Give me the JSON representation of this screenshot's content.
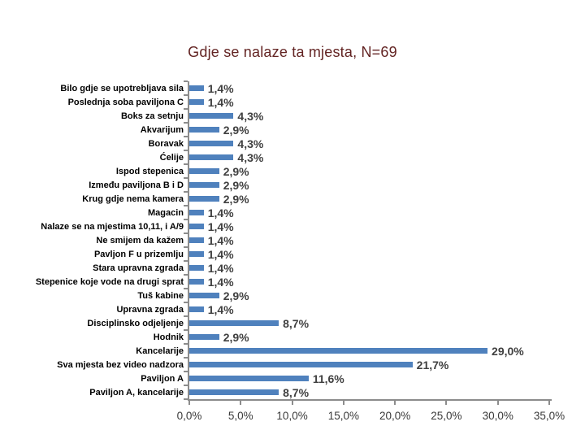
{
  "chart_data": {
    "type": "bar",
    "orientation": "horizontal",
    "title": "Gdje se nalaze ta mjesta, N=69",
    "title_color": "#632423",
    "categories": [
      "Bilo gdje se upotrebljava sila",
      "Poslednja soba paviljona C",
      "Boks za setnju",
      "Akvarijum",
      "Boravak",
      "Ćelije",
      "Ispod stepenica",
      "Između paviljona B i D",
      "Krug gdje nema kamera",
      "Magacin",
      "Nalaze se na mjestima 10,11, i A/9",
      "Ne smijem da kažem",
      "Pavljon F u prizemlju",
      "Stara upravna zgrada",
      "Stepenice koje vode na drugi sprat",
      "Tuš kabine",
      "Upravna zgrada",
      "Disciplinsko odjeljenje",
      "Hodnik",
      "Kancelarije",
      "Sva mjesta bez video nadzora",
      "Paviljon A",
      "Paviljon A, kancelarije"
    ],
    "values": [
      1.4,
      1.4,
      4.3,
      2.9,
      4.3,
      4.3,
      2.9,
      2.9,
      2.9,
      1.4,
      1.4,
      1.4,
      1.4,
      1.4,
      1.4,
      2.9,
      1.4,
      8.7,
      2.9,
      29.0,
      21.7,
      11.6,
      8.7
    ],
    "value_labels": [
      "1,4%",
      "1,4%",
      "4,3%",
      "2,9%",
      "4,3%",
      "4,3%",
      "2,9%",
      "2,9%",
      "2,9%",
      "1,4%",
      "1,4%",
      "1,4%",
      "1,4%",
      "1,4%",
      "1,4%",
      "2,9%",
      "1,4%",
      "8,7%",
      "2,9%",
      "29,0%",
      "21,7%",
      "11,6%",
      "8,7%"
    ],
    "x_ticks": [
      "0,0%",
      "5,0%",
      "10,0%",
      "15,0%",
      "20,0%",
      "25,0%",
      "30,0%",
      "35,0%"
    ],
    "xlim": [
      0,
      35
    ],
    "bar_color": "#4F81BD",
    "axis_color": "#8c8c8c",
    "value_label_color": "#404040",
    "category_label_color": "#000000",
    "grid": false,
    "legend": "none"
  }
}
